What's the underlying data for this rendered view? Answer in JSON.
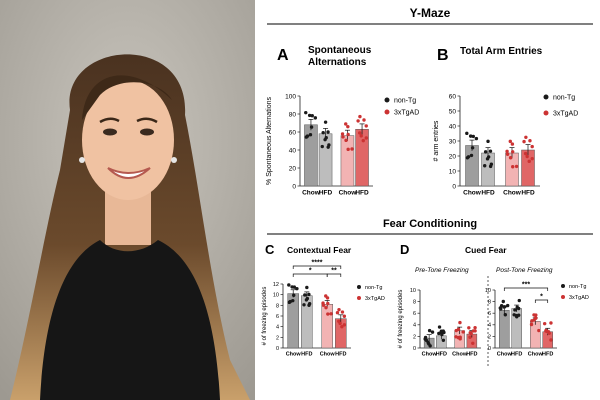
{
  "photo": {
    "alt": "Portrait photo of a smiling woman with long wavy hair"
  },
  "colors": {
    "chow": "#9e9e9e",
    "hfd_tg": "#bdbdbd",
    "chow_ad": "#f2b3b3",
    "hfd_ad": "#e06666",
    "dot_tg": "#1a1a1a",
    "dot_ad": "#cc3333",
    "axis": "#222222"
  },
  "sections": {
    "ymaze": "Y-Maze",
    "fear": "Fear Conditioning"
  },
  "legend": {
    "tg": "non-Tg",
    "ad": "3xTgAD"
  },
  "panels": {
    "A": {
      "letter": "A",
      "title1": "Spontaneous",
      "title2": "Alternations"
    },
    "B": {
      "letter": "B",
      "title": "Total Arm Entries"
    },
    "C": {
      "letter": "C",
      "title": "Contextual Fear"
    },
    "D": {
      "letter": "D",
      "title": "Cued Fear",
      "sub_pre": "Pre-Tone Freezing",
      "sub_post": "Post-Tone Freezing"
    }
  },
  "chart_data": [
    {
      "id": "A",
      "type": "bar",
      "title": "Spontaneous Alternations",
      "ylabel": "% Spontaneous Alternations",
      "ylim": [
        0,
        100
      ],
      "yticks": [
        0,
        20,
        40,
        60,
        80,
        100
      ],
      "categories": [
        "Chow",
        "HFD",
        "Chow",
        "HFD"
      ],
      "groups": [
        "non-Tg",
        "non-Tg",
        "3xTgAD",
        "3xTgAD"
      ],
      "values": [
        68,
        58,
        56,
        63
      ]
    },
    {
      "id": "B",
      "type": "bar",
      "title": "Total Arm Entries",
      "ylabel": "# arm entries",
      "ylim": [
        0,
        60
      ],
      "yticks": [
        0,
        10,
        20,
        30,
        40,
        50,
        60
      ],
      "categories": [
        "Chow",
        "HFD",
        "Chow",
        "HFD"
      ],
      "groups": [
        "non-Tg",
        "non-Tg",
        "3xTgAD",
        "3xTgAD"
      ],
      "values": [
        27,
        22,
        22,
        24
      ]
    },
    {
      "id": "C",
      "type": "bar",
      "title": "Contextual Fear",
      "ylabel": "# of freezing episodes",
      "ylim": [
        0,
        12
      ],
      "yticks": [
        0,
        2,
        4,
        6,
        8,
        10,
        12
      ],
      "categories": [
        "Chow",
        "HFD",
        "Chow",
        "HFD"
      ],
      "groups": [
        "non-Tg",
        "non-Tg",
        "3xTgAD",
        "3xTgAD"
      ],
      "values": [
        10.2,
        9.8,
        8.2,
        5.5
      ],
      "significance": [
        "****",
        "*",
        "**"
      ]
    },
    {
      "id": "D-pre",
      "type": "bar",
      "title": "Pre-Tone Freezing",
      "ylabel": "# of freezing episodes",
      "ylim": [
        0,
        10
      ],
      "yticks": [
        0,
        2,
        4,
        6,
        8,
        10
      ],
      "categories": [
        "Chow",
        "HFD",
        "Chow",
        "HFD"
      ],
      "groups": [
        "non-Tg",
        "non-Tg",
        "3xTgAD",
        "3xTgAD"
      ],
      "values": [
        1.7,
        2.1,
        3.0,
        2.4
      ]
    },
    {
      "id": "D-post",
      "type": "bar",
      "title": "Post-Tone Freezing",
      "ylabel": "# of freezing episodes",
      "ylim": [
        0,
        10
      ],
      "yticks": [
        0,
        2,
        4,
        6,
        8,
        10
      ],
      "categories": [
        "Chow",
        "HFD",
        "Chow",
        "HFD"
      ],
      "groups": [
        "non-Tg",
        "non-Tg",
        "3xTgAD",
        "3xTgAD"
      ],
      "values": [
        6.5,
        6.8,
        4.6,
        2.8
      ],
      "significance": [
        "***",
        "*"
      ]
    }
  ]
}
